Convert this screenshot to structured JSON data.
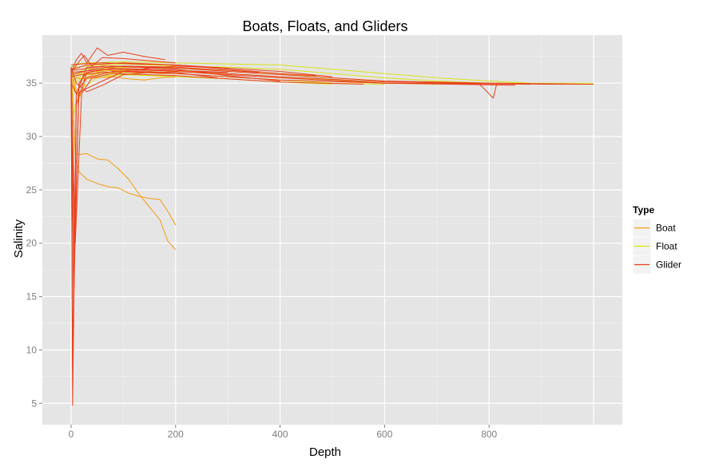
{
  "chart_data": {
    "type": "line",
    "title": "Boats, Floats, and Gliders",
    "xlabel": "Depth",
    "ylabel": "Salinity",
    "xlim": [
      -55,
      1055
    ],
    "ylim": [
      3,
      39.5
    ],
    "x_ticks": [
      0,
      200,
      400,
      600,
      800
    ],
    "y_ticks": [
      5,
      10,
      15,
      20,
      25,
      30,
      35
    ],
    "x_tick_labels": [
      "0",
      "200",
      "400",
      "600",
      "800"
    ],
    "y_tick_labels": [
      "5",
      "10",
      "15",
      "20",
      "25",
      "30",
      "35"
    ],
    "grid": true,
    "legend": {
      "title": "Type",
      "placement": "right",
      "entries": [
        {
          "name": "Boat",
          "color": "#f39c12"
        },
        {
          "name": "Float",
          "color": "#d9e21c"
        },
        {
          "name": "Glider",
          "color": "#e8401c"
        }
      ]
    },
    "series": [
      {
        "name": "Boat",
        "color": "#f39c12",
        "lines": [
          {
            "x": [
              0,
              5,
              15,
              30,
              50,
              75,
              100,
              125,
              150,
              175,
              200
            ],
            "y": [
              36.2,
              35.2,
              33.5,
              35.5,
              36.0,
              36.2,
              36.1,
              36.0,
              36.1,
              36.0,
              36.1
            ]
          },
          {
            "x": [
              0,
              10,
              25,
              50,
              80,
              110,
              140,
              170,
              200
            ],
            "y": [
              35.5,
              34.0,
              35.8,
              36.2,
              36.3,
              36.1,
              36.0,
              35.9,
              35.9
            ]
          },
          {
            "x": [
              0,
              10,
              25,
              50,
              80,
              110,
              140,
              170,
              200
            ],
            "y": [
              35.0,
              35.5,
              35.4,
              35.5,
              35.6,
              35.4,
              35.3,
              35.5,
              35.6
            ]
          },
          {
            "x": [
              0,
              8,
              12,
              30,
              50,
              70,
              90,
              110,
              130,
              150,
              170,
              185,
              200
            ],
            "y": [
              36.5,
              28.5,
              28.3,
              28.4,
              27.9,
              27.8,
              27.0,
              26.0,
              24.6,
              23.4,
              22.2,
              20.2,
              19.4
            ]
          },
          {
            "x": [
              0,
              8,
              15,
              30,
              50,
              70,
              90,
              110,
              130,
              150,
              170,
              185,
              200
            ],
            "y": [
              36.5,
              28.0,
              26.7,
              26.0,
              25.6,
              25.3,
              25.2,
              24.7,
              24.4,
              24.2,
              24.1,
              23.0,
              21.7
            ]
          }
        ]
      },
      {
        "name": "Float",
        "color": "#d9e21c",
        "lines": [
          {
            "x": [
              0,
              10,
              30,
              100,
              200,
              300,
              400,
              500,
              600,
              700,
              800,
              880,
              1000
            ],
            "y": [
              36.5,
              36.8,
              36.9,
              37.0,
              36.9,
              36.8,
              36.7,
              36.3,
              35.9,
              35.5,
              35.2,
              35.0,
              35.0
            ]
          },
          {
            "x": [
              0,
              10,
              30,
              100,
              200,
              300,
              400,
              500,
              600,
              700,
              800,
              870
            ],
            "y": [
              36.0,
              36.5,
              36.6,
              36.8,
              36.6,
              36.5,
              36.3,
              35.9,
              35.5,
              35.2,
              35.0,
              35.0
            ]
          },
          {
            "x": [
              0,
              10,
              30,
              100,
              200,
              300,
              400,
              500,
              600,
              700,
              760
            ],
            "y": [
              35.5,
              36.0,
              36.3,
              36.5,
              36.4,
              36.2,
              35.9,
              35.5,
              35.2,
              35.0,
              35.0
            ]
          },
          {
            "x": [
              0,
              10,
              30,
              100,
              200,
              300,
              400,
              500,
              600,
              700
            ],
            "y": [
              35.2,
              35.8,
              36.0,
              36.3,
              36.1,
              35.9,
              35.6,
              35.3,
              35.0,
              34.9
            ]
          },
          {
            "x": [
              0,
              10,
              30,
              100,
              200,
              300,
              400,
              500,
              600
            ],
            "y": [
              34.0,
              35.5,
              35.8,
              36.0,
              35.9,
              35.6,
              35.3,
              35.0,
              34.9
            ]
          },
          {
            "x": [
              0,
              10,
              30,
              100,
              200,
              300,
              400,
              500
            ],
            "y": [
              33.0,
              35.2,
              35.6,
              35.8,
              35.6,
              35.4,
              35.1,
              34.9
            ]
          },
          {
            "x": [
              0,
              8,
              20,
              50,
              100,
              200
            ],
            "y": [
              30.0,
              33.0,
              34.5,
              35.5,
              35.8,
              35.7
            ]
          }
        ]
      },
      {
        "name": "Glider",
        "color": "#e8401c",
        "lines": [
          {
            "x": [
              0,
              3,
              10,
              30,
              80,
              200,
              400,
              600,
              780,
              800,
              808,
              815,
              990
            ],
            "y": [
              36.0,
              4.8,
              33.0,
              36.0,
              36.4,
              36.2,
              35.6,
              35.1,
              35.0,
              34.0,
              33.6,
              35.0,
              34.9
            ]
          },
          {
            "x": [
              0,
              3,
              10,
              30,
              80,
              200,
              400,
              600,
              900,
              1000
            ],
            "y": [
              36.5,
              8.7,
              34.0,
              36.5,
              36.6,
              36.4,
              35.8,
              35.2,
              34.9,
              34.9
            ]
          },
          {
            "x": [
              0,
              5,
              15,
              30,
              80,
              200,
              400,
              600,
              880
            ],
            "y": [
              36.0,
              14.5,
              35.0,
              36.0,
              36.4,
              36.1,
              35.5,
              35.0,
              34.9
            ]
          },
          {
            "x": [
              0,
              6,
              15,
              30,
              80,
              200,
              400,
              600,
              850
            ],
            "y": [
              36.0,
              19.0,
              34.5,
              35.5,
              36.1,
              35.9,
              35.3,
              35.0,
              34.8
            ]
          },
          {
            "x": [
              0,
              8,
              20,
              40,
              80,
              200,
              400,
              560
            ],
            "y": [
              36.0,
              20.0,
              34.0,
              35.5,
              35.9,
              35.7,
              35.1,
              34.9
            ]
          },
          {
            "x": [
              0,
              10,
              20,
              30,
              50,
              70,
              100,
              140,
              180
            ],
            "y": [
              36.0,
              37.2,
              37.8,
              36.9,
              38.3,
              37.6,
              37.9,
              37.5,
              37.2
            ]
          },
          {
            "x": [
              0,
              15,
              25,
              40,
              60,
              100,
              150,
              200
            ],
            "y": [
              36.0,
              37.0,
              37.6,
              36.6,
              37.4,
              37.3,
              37.1,
              36.9
            ]
          },
          {
            "x": [
              0,
              10,
              30,
              60,
              100,
              150,
              200,
              300,
              400,
              500
            ],
            "y": [
              35.0,
              34.0,
              34.5,
              35.2,
              36.1,
              36.4,
              36.6,
              36.4,
              36.1,
              35.6
            ]
          },
          {
            "x": [
              0,
              10,
              30,
              60,
              100,
              150,
              200
            ],
            "y": [
              36.5,
              35.0,
              34.2,
              34.8,
              35.8,
              36.0,
              35.9
            ]
          },
          {
            "x": [
              0,
              20,
              60,
              120,
              200,
              300,
              400,
              470
            ],
            "y": [
              36.7,
              36.8,
              36.9,
              36.8,
              36.7,
              36.3,
              35.9,
              35.7
            ]
          },
          {
            "x": [
              0,
              20,
              60,
              120,
              200,
              300,
              400
            ],
            "y": [
              36.2,
              36.3,
              36.6,
              36.5,
              36.3,
              35.7,
              35.2
            ]
          },
          {
            "x": [
              0,
              20,
              60,
              120,
              200,
              280
            ],
            "y": [
              35.6,
              35.8,
              36.0,
              36.1,
              36.0,
              35.5
            ]
          },
          {
            "x": [
              0,
              20,
              60,
              120,
              200,
              300
            ],
            "y": [
              36.0,
              36.1,
              36.3,
              36.2,
              36.2,
              36.0
            ]
          },
          {
            "x": [
              0,
              10,
              50,
              100,
              200,
              300,
              360
            ],
            "y": [
              35.8,
              35.9,
              36.4,
              36.6,
              36.5,
              36.2,
              36.0
            ]
          },
          {
            "x": [
              0,
              10,
              30,
              100,
              200,
              300
            ],
            "y": [
              36.3,
              36.4,
              36.7,
              36.9,
              36.7,
              36.4
            ]
          }
        ]
      }
    ]
  }
}
